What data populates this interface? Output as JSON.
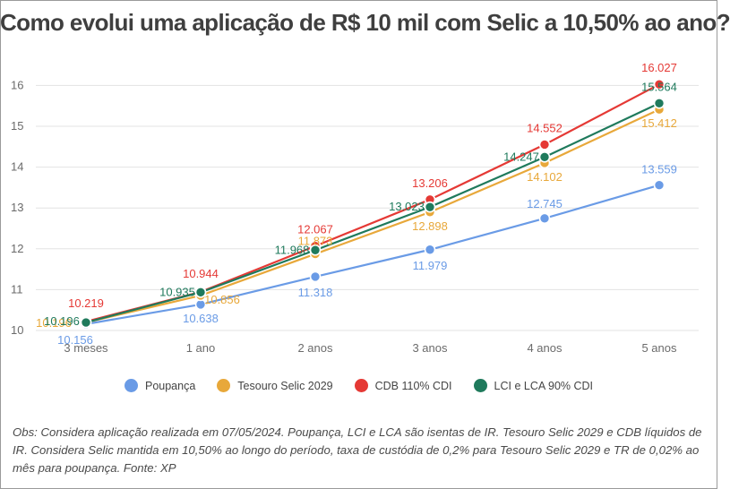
{
  "title": "Como evolui uma aplicação de R$ 10 mil com Selic a 10,50% ao ano?",
  "chart_data": {
    "type": "line",
    "title": "Como evolui uma aplicação de R$ 10 mil com Selic a 10,50% ao ano?",
    "xlabel": "",
    "ylabel": "",
    "categories": [
      "3 meses",
      "1 ano",
      "2 anos",
      "3 anos",
      "4 anos",
      "5 anos"
    ],
    "ylim": [
      10,
      16
    ],
    "yticks": [
      "10",
      "11",
      "12",
      "13",
      "14",
      "15",
      "16"
    ],
    "grid": true,
    "legend_position": "bottom",
    "series": [
      {
        "name": "Poupança",
        "color": "#6a9be6",
        "values": [
          10.156,
          10.638,
          11.318,
          11.979,
          12.745,
          13.559
        ],
        "labels": [
          "10.156",
          "10.638",
          "11.318",
          "11.979",
          "12.745",
          "13.559"
        ]
      },
      {
        "name": "Tesouro Selic 2029",
        "color": "#e8a83a",
        "values": [
          10.196,
          10.856,
          11.873,
          12.898,
          14.102,
          15.412
        ],
        "labels": [
          "10.196",
          "10.856",
          "11.873",
          "12.898",
          "14.102",
          "15.412"
        ]
      },
      {
        "name": "CDB 110% CDI",
        "color": "#e53935",
        "values": [
          10.219,
          10.944,
          12.067,
          13.206,
          14.552,
          16.027
        ],
        "labels": [
          "10.219",
          "10.944",
          "12.067",
          "13.206",
          "14.552",
          "16.027"
        ]
      },
      {
        "name": "LCI e LCA 90% CDI",
        "color": "#1f7a5c",
        "values": [
          10.196,
          10.935,
          11.968,
          13.023,
          14.247,
          15.564
        ],
        "labels": [
          "10.196",
          "10.935",
          "11.968",
          "13.023",
          "14.247",
          "15.564"
        ]
      }
    ]
  },
  "note": "Obs: Considera aplicação realizada em 07/05/2024. Poupança, LCI e LCA são isentas de IR. Tesouro Selic 2029 e CDB líquidos de IR. Considera Selic mantida em 10,50% ao longo do período, taxa de custódia de 0,2% para Tesouro Selic 2029 e TR de 0,02% ao mês para poupança. Fonte: XP"
}
